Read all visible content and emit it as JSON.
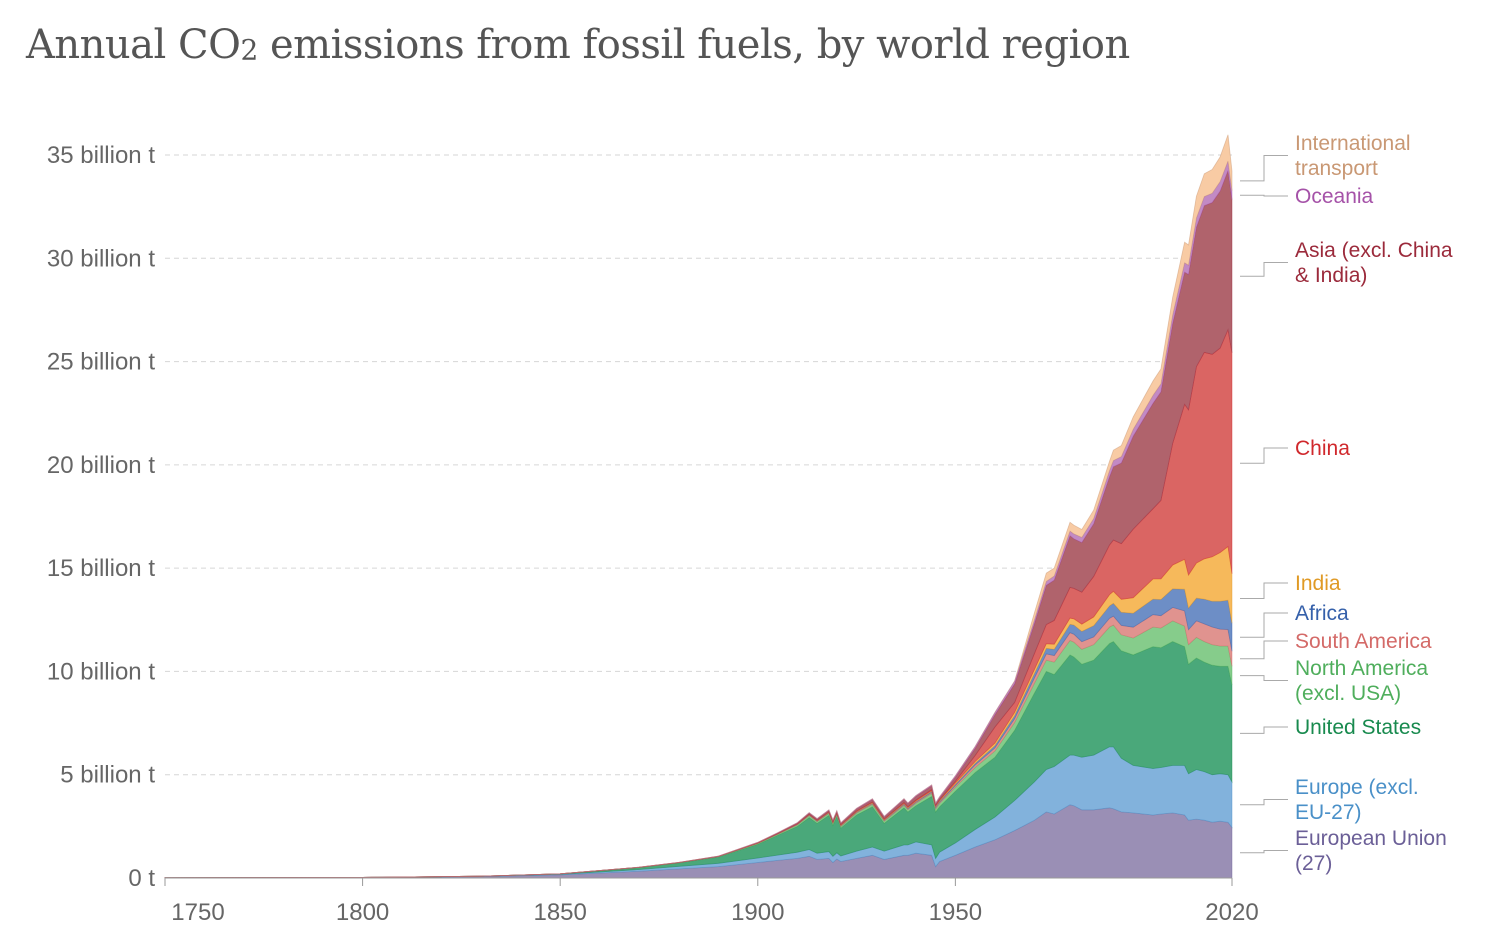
{
  "title_main": "Annual CO",
  "title_sub": "2",
  "title_rest": " emissions from fossil fuels, by world region",
  "chart_data": {
    "type": "area",
    "stacked": true,
    "title": "Annual CO2 emissions from fossil fuels, by world region",
    "xlabel": "",
    "ylabel": "",
    "unit": "billion t",
    "xlim": [
      1750,
      2020
    ],
    "ylim": [
      0,
      37
    ],
    "grid": true,
    "legend_placement": "right (inline labels)",
    "y_ticks": [
      {
        "value": 0,
        "label": "0 t"
      },
      {
        "value": 5,
        "label": "5 billion t"
      },
      {
        "value": 10,
        "label": "10 billion t"
      },
      {
        "value": 15,
        "label": "15 billion t"
      },
      {
        "value": 20,
        "label": "20 billion t"
      },
      {
        "value": 25,
        "label": "25 billion t"
      },
      {
        "value": 30,
        "label": "30 billion t"
      },
      {
        "value": 35,
        "label": "35 billion t"
      }
    ],
    "x_ticks": [
      {
        "value": 1750,
        "label": "1750"
      },
      {
        "value": 1800,
        "label": "1800"
      },
      {
        "value": 1850,
        "label": "1850"
      },
      {
        "value": 1900,
        "label": "1900"
      },
      {
        "value": 1950,
        "label": "1950"
      },
      {
        "value": 2020,
        "label": "2020"
      }
    ],
    "x": [
      1750,
      1800,
      1830,
      1850,
      1870,
      1880,
      1890,
      1900,
      1905,
      1910,
      1913,
      1915,
      1918,
      1919,
      1920,
      1921,
      1925,
      1929,
      1932,
      1937,
      1938,
      1940,
      1944,
      1945,
      1946,
      1950,
      1955,
      1960,
      1965,
      1970,
      1973,
      1975,
      1979,
      1980,
      1982,
      1985,
      1989,
      1990,
      1992,
      1995,
      2000,
      2002,
      2005,
      2008,
      2009,
      2011,
      2013,
      2015,
      2017,
      2019,
      2020
    ],
    "series": [
      {
        "name": "European Union (27)",
        "label": "European Union\n(27)",
        "color": "#9a8fb5",
        "label_color": "#6b5f97",
        "values": [
          0.009,
          0.028,
          0.07,
          0.15,
          0.33,
          0.44,
          0.55,
          0.75,
          0.85,
          0.95,
          1.05,
          0.9,
          0.95,
          0.75,
          0.92,
          0.8,
          0.95,
          1.1,
          0.9,
          1.1,
          1.1,
          1.2,
          1.1,
          0.55,
          0.8,
          1.1,
          1.5,
          1.85,
          2.3,
          2.8,
          3.2,
          3.1,
          3.55,
          3.5,
          3.3,
          3.3,
          3.4,
          3.35,
          3.2,
          3.15,
          3.05,
          3.1,
          3.15,
          3.05,
          2.8,
          2.85,
          2.8,
          2.7,
          2.75,
          2.7,
          2.45
        ]
      },
      {
        "name": "Europe (excl. EU-27)",
        "label": "Europe (excl.\nEU-27)",
        "color": "#82b2dc",
        "label_color": "#4a90c8",
        "values": [
          0.0,
          0.002,
          0.012,
          0.03,
          0.08,
          0.12,
          0.16,
          0.22,
          0.26,
          0.3,
          0.33,
          0.3,
          0.33,
          0.3,
          0.3,
          0.27,
          0.35,
          0.4,
          0.4,
          0.5,
          0.5,
          0.55,
          0.5,
          0.4,
          0.45,
          0.6,
          0.85,
          1.1,
          1.45,
          1.85,
          2.05,
          2.3,
          2.4,
          2.45,
          2.55,
          2.65,
          2.95,
          3.0,
          2.6,
          2.3,
          2.25,
          2.25,
          2.3,
          2.4,
          2.25,
          2.4,
          2.35,
          2.3,
          2.3,
          2.3,
          2.2
        ]
      },
      {
        "name": "United States",
        "label": "United States",
        "color": "#4aa87a",
        "label_color": "#188a4e",
        "values": [
          0.0,
          0.0003,
          0.005,
          0.02,
          0.1,
          0.17,
          0.3,
          0.66,
          0.95,
          1.25,
          1.55,
          1.45,
          1.75,
          1.5,
          1.75,
          1.35,
          1.75,
          1.95,
          1.35,
          1.8,
          1.6,
          1.75,
          2.35,
          2.25,
          2.2,
          2.5,
          2.75,
          2.9,
          3.4,
          4.3,
          4.75,
          4.45,
          4.85,
          4.75,
          4.5,
          4.6,
          5.0,
          5.1,
          5.2,
          5.35,
          5.9,
          5.8,
          6.0,
          5.75,
          5.3,
          5.4,
          5.3,
          5.3,
          5.2,
          5.25,
          4.7
        ]
      },
      {
        "name": "North America (excl. USA)",
        "label": "North America\n(excl. USA)",
        "color": "#86cc8b",
        "label_color": "#4fae5c",
        "values": [
          0.0,
          0.0,
          0.0,
          0.001,
          0.005,
          0.01,
          0.02,
          0.04,
          0.05,
          0.07,
          0.09,
          0.08,
          0.1,
          0.09,
          0.1,
          0.08,
          0.1,
          0.12,
          0.1,
          0.12,
          0.11,
          0.12,
          0.15,
          0.15,
          0.16,
          0.2,
          0.25,
          0.3,
          0.38,
          0.48,
          0.55,
          0.6,
          0.7,
          0.72,
          0.72,
          0.75,
          0.8,
          0.8,
          0.78,
          0.82,
          0.95,
          0.95,
          1.0,
          1.0,
          0.95,
          1.0,
          1.0,
          1.0,
          0.98,
          0.98,
          0.9
        ]
      },
      {
        "name": "South America",
        "label": "South America",
        "color": "#e0938f",
        "label_color": "#d46a68",
        "values": [
          0.0,
          0.0,
          0.0,
          0.0,
          0.002,
          0.004,
          0.006,
          0.01,
          0.012,
          0.018,
          0.022,
          0.02,
          0.022,
          0.022,
          0.025,
          0.024,
          0.03,
          0.035,
          0.03,
          0.04,
          0.042,
          0.045,
          0.05,
          0.055,
          0.06,
          0.08,
          0.12,
          0.15,
          0.18,
          0.25,
          0.3,
          0.32,
          0.38,
          0.38,
          0.37,
          0.37,
          0.42,
          0.43,
          0.45,
          0.52,
          0.6,
          0.6,
          0.65,
          0.73,
          0.72,
          0.8,
          0.85,
          0.85,
          0.82,
          0.8,
          0.73
        ]
      },
      {
        "name": "Africa",
        "label": "Africa",
        "color": "#6d8ec6",
        "label_color": "#3560aa",
        "values": [
          0.0,
          0.0,
          0.0,
          0.0,
          0.001,
          0.002,
          0.003,
          0.006,
          0.008,
          0.01,
          0.012,
          0.012,
          0.014,
          0.014,
          0.015,
          0.015,
          0.018,
          0.022,
          0.02,
          0.03,
          0.03,
          0.035,
          0.04,
          0.04,
          0.045,
          0.06,
          0.08,
          0.11,
          0.15,
          0.22,
          0.27,
          0.3,
          0.4,
          0.45,
          0.5,
          0.55,
          0.6,
          0.62,
          0.63,
          0.68,
          0.75,
          0.78,
          0.9,
          1.05,
          1.05,
          1.1,
          1.2,
          1.25,
          1.35,
          1.42,
          1.35
        ]
      },
      {
        "name": "India",
        "label": "India",
        "color": "#f6b95b",
        "label_color": "#e09a25",
        "values": [
          0.0,
          0.0,
          0.0,
          0.0,
          0.001,
          0.003,
          0.006,
          0.01,
          0.012,
          0.015,
          0.018,
          0.02,
          0.022,
          0.022,
          0.023,
          0.023,
          0.025,
          0.028,
          0.026,
          0.03,
          0.03,
          0.033,
          0.035,
          0.035,
          0.036,
          0.07,
          0.09,
          0.12,
          0.16,
          0.2,
          0.22,
          0.25,
          0.3,
          0.3,
          0.35,
          0.42,
          0.55,
          0.58,
          0.63,
          0.75,
          0.98,
          1.0,
          1.15,
          1.45,
          1.6,
          1.7,
          1.95,
          2.15,
          2.35,
          2.6,
          2.4
        ]
      },
      {
        "name": "China",
        "label": "China",
        "color": "#da6563",
        "label_color": "#d0282c",
        "values": [
          0.0,
          0.0,
          0.0,
          0.0,
          0.0,
          0.0,
          0.001,
          0.003,
          0.005,
          0.01,
          0.014,
          0.015,
          0.018,
          0.018,
          0.02,
          0.02,
          0.025,
          0.03,
          0.03,
          0.04,
          0.04,
          0.05,
          0.06,
          0.03,
          0.04,
          0.08,
          0.29,
          0.78,
          0.48,
          0.77,
          0.93,
          1.15,
          1.49,
          1.47,
          1.55,
          1.96,
          2.4,
          2.48,
          2.7,
          3.32,
          3.4,
          3.8,
          5.9,
          7.5,
          8.0,
          9.5,
          10.0,
          9.8,
          9.9,
          10.5,
          10.7
        ]
      },
      {
        "name": "Asia (excl. China & India)",
        "label": "Asia (excl. China\n& India)",
        "color": "#b0636c",
        "label_color": "#9b2a3b",
        "values": [
          0.0,
          0.0,
          0.0,
          0.0,
          0.002,
          0.004,
          0.008,
          0.02,
          0.03,
          0.04,
          0.06,
          0.06,
          0.07,
          0.07,
          0.08,
          0.07,
          0.1,
          0.12,
          0.1,
          0.15,
          0.15,
          0.17,
          0.18,
          0.08,
          0.1,
          0.2,
          0.35,
          0.6,
          0.9,
          1.45,
          1.9,
          1.95,
          2.5,
          2.4,
          2.4,
          2.55,
          3.3,
          3.55,
          3.9,
          4.5,
          5.1,
          5.25,
          5.8,
          6.4,
          6.55,
          6.75,
          7.1,
          7.35,
          7.6,
          7.7,
          7.4
        ]
      },
      {
        "name": "Oceania",
        "label": "Oceania",
        "color": "#c28ac4",
        "label_color": "#a552a8",
        "values": [
          0.0,
          0.0,
          0.0,
          0.0,
          0.002,
          0.004,
          0.006,
          0.01,
          0.012,
          0.015,
          0.018,
          0.018,
          0.02,
          0.02,
          0.02,
          0.02,
          0.025,
          0.028,
          0.025,
          0.03,
          0.03,
          0.035,
          0.04,
          0.04,
          0.045,
          0.06,
          0.08,
          0.1,
          0.13,
          0.17,
          0.19,
          0.2,
          0.23,
          0.24,
          0.25,
          0.26,
          0.3,
          0.3,
          0.31,
          0.33,
          0.38,
          0.39,
          0.42,
          0.45,
          0.45,
          0.45,
          0.44,
          0.45,
          0.46,
          0.46,
          0.44
        ]
      },
      {
        "name": "International transport",
        "label": "International\ntransport",
        "color": "#f8cba4",
        "label_color": "#c99874",
        "values": [
          0.0,
          0.0,
          0.0,
          0.0,
          0.0,
          0.0,
          0.0,
          0.0,
          0.0,
          0.0,
          0.0,
          0.0,
          0.0,
          0.0,
          0.0,
          0.0,
          0.0,
          0.0,
          0.0,
          0.0,
          0.0,
          0.0,
          0.0,
          0.0,
          0.0,
          0.0,
          0.0,
          0.0,
          0.0,
          0.35,
          0.4,
          0.38,
          0.42,
          0.42,
          0.38,
          0.4,
          0.45,
          0.5,
          0.53,
          0.6,
          0.7,
          0.72,
          0.85,
          1.0,
          0.98,
          1.05,
          1.1,
          1.15,
          1.2,
          1.27,
          0.95
        ]
      }
    ]
  }
}
